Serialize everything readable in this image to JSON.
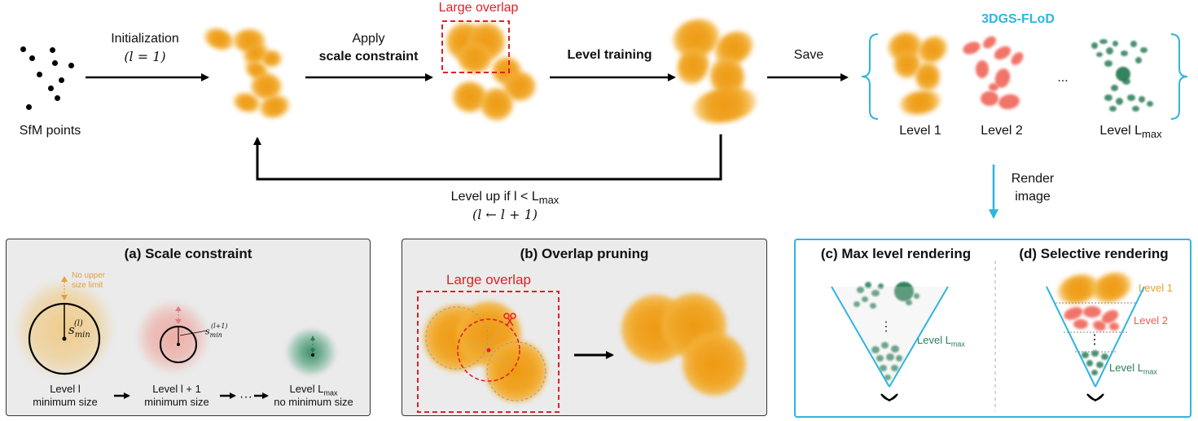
{
  "top": {
    "sfm_label": "SfM points",
    "init_label": "Initialization",
    "init_cond": "(l = 1)",
    "apply_label": "Apply",
    "scale_constraint": "scale constraint",
    "large_overlap": "Large overlap",
    "level_training": "Level training",
    "save": "Save",
    "method_name": "3DGS-FLoD",
    "level1": "Level 1",
    "level2": "Level 2",
    "ellipsis": "...",
    "level_max": "Level L",
    "max_sub": "max",
    "loop_line1": "Level up if l < L",
    "loop_sub": "max",
    "loop_line2": "(l ← l + 1)",
    "render_line1": "Render",
    "render_line2": "image"
  },
  "panel_a": {
    "title": "(a) Scale constraint",
    "no_upper_1": "No upper",
    "no_upper_2": "size limit",
    "smin_l": "s",
    "smin_l_sub": "min",
    "smin_l_sup": "(l)",
    "smin_l1_sup": "(l+1)",
    "cap1_a": "Level l",
    "cap1_b": "minimum size",
    "cap2_a": "Level l + 1",
    "cap2_b": "minimum size",
    "cap3_a": "Level L",
    "cap3_sub": "max",
    "cap3_b": "no minimum size",
    "arrow_dots": "···"
  },
  "panel_b": {
    "title": "(b) Overlap pruning",
    "large_overlap": "Large overlap"
  },
  "panel_c": {
    "title": "(c) Max level rendering",
    "vdots": "⋮",
    "level_max": "Level L",
    "max_sub": "max"
  },
  "panel_d": {
    "title": "(d) Selective rendering",
    "level1": "Level 1",
    "level2": "Level 2",
    "vdots": "⋮",
    "level_max": "Level L",
    "max_sub": "max"
  },
  "colors": {
    "orange": "#f0a526",
    "red": "#f06050",
    "green": "#2a7d57",
    "blue": "#2fb5e0",
    "dashed_red": "#e0202a"
  }
}
